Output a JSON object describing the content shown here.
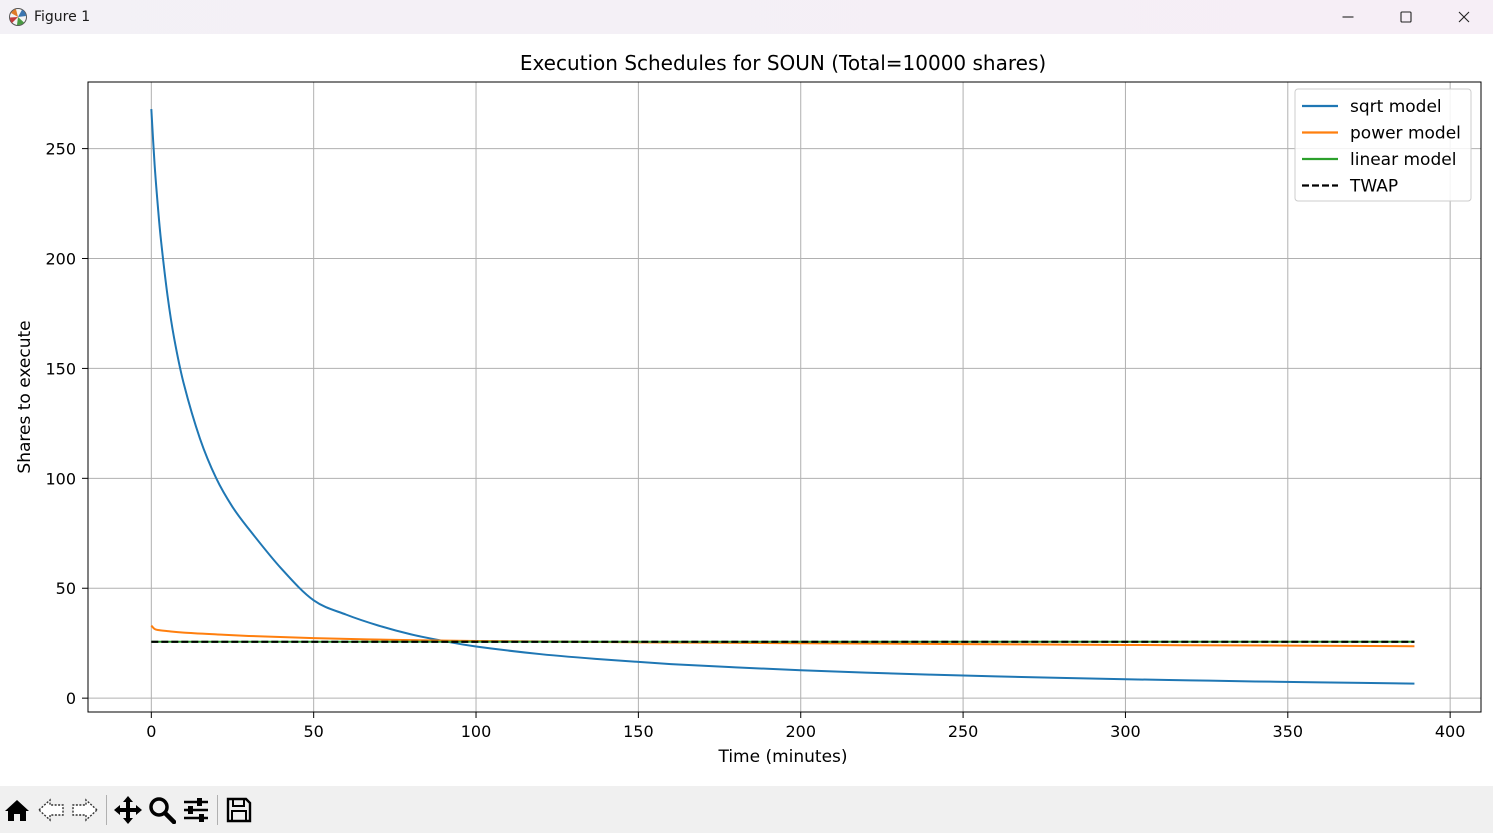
{
  "window": {
    "title": "Figure 1",
    "icon": "matplotlib-figure-icon",
    "controls": [
      "minimize-icon",
      "maximize-icon",
      "close-icon"
    ]
  },
  "toolbar": {
    "buttons": [
      "home-icon",
      "back-arrow-icon",
      "forward-arrow-icon",
      "pan-move-icon",
      "zoom-magnifier-icon",
      "configure-subplots-icon",
      "save-disk-icon"
    ]
  },
  "chart_data": {
    "type": "line",
    "title": "Execution Schedules for SOUN (Total=10000 shares)",
    "xlabel": "Time (minutes)",
    "ylabel": "Shares to execute",
    "xlim": [
      -19.5,
      409.5
    ],
    "ylim": [
      -6.3,
      280.3
    ],
    "xticks": [
      0,
      50,
      100,
      150,
      200,
      250,
      300,
      350,
      400
    ],
    "yticks": [
      0,
      50,
      100,
      150,
      200,
      250
    ],
    "grid": true,
    "legend_position": "upper right",
    "series": [
      {
        "name": "sqrt model",
        "color": "#1f77b4",
        "style": "solid",
        "x": [
          0,
          1,
          2,
          3,
          5,
          7,
          10,
          15,
          20,
          25,
          30,
          40,
          50,
          60,
          70,
          80,
          90,
          100,
          120,
          140,
          160,
          180,
          200,
          220,
          240,
          260,
          280,
          300,
          320,
          340,
          360,
          389
        ],
        "y": [
          268,
          243,
          224,
          208,
          183,
          164,
          143,
          118,
          100,
          87,
          77,
          59,
          44.5,
          38,
          33,
          29,
          26,
          23.5,
          20,
          17.5,
          15.5,
          14,
          12.7,
          11.6,
          10.7,
          9.9,
          9.2,
          8.6,
          8.1,
          7.6,
          7.2,
          6.6
        ]
      },
      {
        "name": "power model",
        "color": "#ff7f0e",
        "style": "solid",
        "x": [
          0,
          1,
          2,
          5,
          10,
          20,
          30,
          50,
          75,
          100,
          150,
          200,
          250,
          300,
          350,
          389
        ],
        "y": [
          33,
          31.5,
          31,
          30.5,
          29.8,
          29,
          28.3,
          27.3,
          26.5,
          26,
          25.4,
          25,
          24.6,
          24.2,
          23.9,
          23.6
        ]
      },
      {
        "name": "linear model",
        "color": "#2ca02c",
        "style": "solid",
        "x": [
          0,
          389
        ],
        "y": [
          25.64,
          25.64
        ]
      },
      {
        "name": "TWAP",
        "color": "#000000",
        "style": "dashed",
        "x": [
          0,
          389
        ],
        "y": [
          25.64,
          25.64
        ]
      }
    ]
  }
}
